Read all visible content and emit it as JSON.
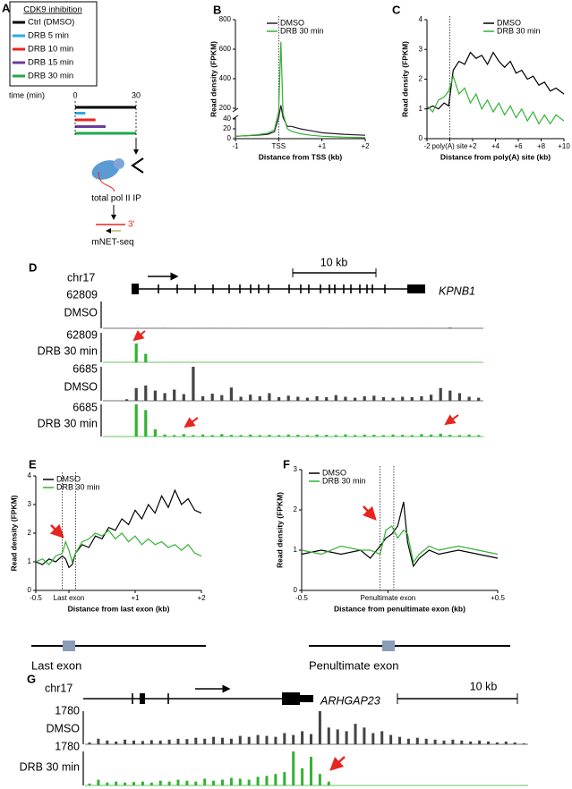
{
  "panel_labels": [
    "A",
    "B",
    "C",
    "D",
    "E",
    "F",
    "G"
  ],
  "panel_a": {
    "legend_title": "CDK9 inhibition",
    "items": [
      {
        "label": "Ctrl (DMSO)",
        "color": "#000000",
        "minutes": 30
      },
      {
        "label": "DRB 5 min",
        "color": "#29abe2",
        "minutes": 5
      },
      {
        "label": "DRB 10 min",
        "color": "#e8251f",
        "minutes": 10
      },
      {
        "label": "DRB 15 min",
        "color": "#6a3d9a",
        "minutes": 15
      },
      {
        "label": "DRB 30 min",
        "color": "#1fa84a",
        "minutes": 30
      }
    ],
    "time_label": "time (min)",
    "time_ticks": [
      0,
      30
    ],
    "ip_label": "total pol II IP",
    "end_label": "3'",
    "method_label": "mNET-seq"
  },
  "chart_data": [
    {
      "type": "line",
      "xlabel": "Distance from TSS (kb)",
      "ylabel": "Read density (FPKM)",
      "x": [
        -1,
        -0.75,
        -0.5,
        -0.25,
        -0.1,
        0,
        0.05,
        0.1,
        0.2,
        0.3,
        0.5,
        0.75,
        1,
        1.5,
        2
      ],
      "series": [
        {
          "name": "DMSO",
          "color": "#2a1a2e",
          "values": [
            5,
            6,
            7,
            9,
            14,
            60,
            220,
            60,
            25,
            25,
            20,
            16,
            12,
            9,
            7
          ]
        },
        {
          "name": "DRB 30 min",
          "color": "#33b233",
          "values": [
            5,
            6,
            8,
            11,
            18,
            150,
            650,
            120,
            20,
            15,
            10,
            7,
            5,
            3,
            2
          ]
        }
      ],
      "xlim": [
        -1,
        2
      ],
      "ylim": [
        0,
        800
      ],
      "y_break": [
        40,
        200
      ],
      "xticks": [
        -1,
        {
          "value": 0,
          "label": "TSS"
        },
        {
          "value": 1,
          "label": "+1"
        },
        {
          "value": 2,
          "label": "+2"
        }
      ],
      "yticks": [
        0,
        20,
        40,
        200,
        400,
        600,
        800
      ],
      "reference_lines": [
        0
      ],
      "legend": "top-right"
    },
    {
      "type": "line",
      "xlabel": "Distance from poly(A) site (kb)",
      "ylabel": "Read density (FPKM)",
      "x": [
        -2,
        -1.5,
        -1,
        -0.5,
        -0.1,
        0.3,
        0.8,
        1.3,
        1.8,
        2.3,
        2.8,
        3.3,
        3.8,
        4.3,
        4.8,
        5.3,
        5.8,
        6.3,
        6.8,
        7.3,
        7.8,
        8.3,
        8.8,
        9.3,
        10
      ],
      "series": [
        {
          "name": "DMSO",
          "color": "#000000",
          "values": [
            1.0,
            1.1,
            1.0,
            1.2,
            1.1,
            2.3,
            2.6,
            2.5,
            2.9,
            2.7,
            2.8,
            2.5,
            2.9,
            2.6,
            2.4,
            2.6,
            2.2,
            2.3,
            2.0,
            2.1,
            1.8,
            1.9,
            1.6,
            1.7,
            1.5
          ]
        },
        {
          "name": "DRB 30 min",
          "color": "#33b233",
          "values": [
            1.1,
            0.9,
            1.3,
            1.4,
            1.6,
            2.1,
            1.5,
            1.7,
            1.2,
            1.5,
            1.0,
            1.3,
            0.9,
            1.2,
            0.8,
            1.1,
            0.7,
            1.0,
            0.6,
            0.9,
            0.5,
            0.8,
            0.5,
            0.8,
            0.6
          ]
        }
      ],
      "xlim": [
        -2,
        10
      ],
      "ylim": [
        0,
        4
      ],
      "xticks": [
        -2,
        {
          "value": 0,
          "label": "poly(A) site"
        },
        {
          "value": 2,
          "label": "+2"
        },
        {
          "value": 4,
          "label": "+4"
        },
        {
          "value": 6,
          "label": "+6"
        },
        {
          "value": 8,
          "label": "+8"
        },
        {
          "value": 10,
          "label": "+10"
        }
      ],
      "yticks": [
        0,
        1,
        2,
        3,
        4
      ],
      "reference_lines": [
        0
      ],
      "legend": "top-right"
    },
    {
      "type": "line",
      "xlabel": "Distance from last exon (kb)",
      "ylabel": "Read density (FPKM)",
      "x": [
        -0.5,
        -0.4,
        -0.3,
        -0.2,
        -0.1,
        -0.05,
        0,
        0.05,
        0.1,
        0.2,
        0.3,
        0.4,
        0.5,
        0.6,
        0.7,
        0.8,
        0.9,
        1.0,
        1.1,
        1.2,
        1.3,
        1.4,
        1.5,
        1.6,
        1.7,
        1.8,
        1.9,
        2.0
      ],
      "series": [
        {
          "name": "DMSO",
          "color": "#000000",
          "values": [
            1.0,
            0.9,
            1.1,
            1.0,
            1.2,
            1.1,
            0.8,
            0.9,
            1.3,
            1.6,
            1.5,
            1.9,
            1.8,
            2.2,
            2.1,
            2.5,
            2.3,
            2.8,
            2.5,
            3.0,
            2.7,
            3.3,
            2.9,
            3.5,
            3.0,
            3.2,
            2.8,
            2.7
          ]
        },
        {
          "name": "DRB 30 min",
          "color": "#33b233",
          "values": [
            1.0,
            1.1,
            0.9,
            1.2,
            1.3,
            1.7,
            1.4,
            1.0,
            1.3,
            1.7,
            1.8,
            2.0,
            1.9,
            2.1,
            1.8,
            2.0,
            1.7,
            1.9,
            1.6,
            1.8,
            1.6,
            1.7,
            1.5,
            1.6,
            1.4,
            1.6,
            1.3,
            1.2
          ]
        }
      ],
      "xlim": [
        -0.5,
        2
      ],
      "ylim": [
        0,
        4
      ],
      "xticks": [
        -0.5,
        {
          "value": 0,
          "label": "Last exon"
        },
        {
          "value": 1,
          "label": "+1"
        },
        {
          "value": 2,
          "label": "+2"
        }
      ],
      "yticks": [
        0,
        1,
        2,
        3,
        4
      ],
      "reference_lines": [
        -0.1,
        0.1
      ],
      "legend": "top-left",
      "caption": "Last exon"
    },
    {
      "type": "line",
      "xlabel": "Distance from penultimate exon (kb)",
      "ylabel": "Read density (FPKM)",
      "x": [
        -0.5,
        -0.4,
        -0.3,
        -0.2,
        -0.15,
        -0.1,
        -0.07,
        -0.04,
        -0.01,
        0.02,
        0.04,
        0.07,
        0.1,
        0.15,
        0.2,
        0.3,
        0.4,
        0.5
      ],
      "series": [
        {
          "name": "DMSO",
          "color": "#000000",
          "values": [
            0.9,
            1.0,
            0.9,
            1.0,
            0.8,
            1.1,
            1.3,
            1.4,
            1.6,
            2.2,
            1.2,
            0.6,
            0.8,
            1.0,
            0.9,
            1.0,
            0.9,
            0.8
          ]
        },
        {
          "name": "DRB 30 min",
          "color": "#33b233",
          "values": [
            1.0,
            0.9,
            1.1,
            1.0,
            1.0,
            0.9,
            1.5,
            1.6,
            1.3,
            1.5,
            1.4,
            0.7,
            0.9,
            1.1,
            1.0,
            1.1,
            1.0,
            0.9
          ]
        }
      ],
      "xlim": [
        -0.5,
        0.5
      ],
      "ylim": [
        0,
        3
      ],
      "xticks": [
        -0.5,
        {
          "value": -0.06,
          "label": "Penultimate exon"
        },
        {
          "value": 0.5,
          "label": "+0.5"
        }
      ],
      "yticks": [
        0,
        1,
        2,
        3
      ],
      "reference_lines": [
        -0.1,
        -0.03
      ],
      "legend": "top-left",
      "caption": "Penultimate exon"
    }
  ],
  "panel_d": {
    "chrom": "chr17",
    "gene": "KPNB1",
    "scale_label": "10 kb",
    "tracks": [
      {
        "max": 62809,
        "name": "DMSO",
        "color": "#444444",
        "signal": [
          300,
          200,
          400,
          300,
          250,
          350,
          800,
          300,
          200,
          300,
          250,
          400,
          300,
          200,
          350,
          300,
          250,
          300,
          200,
          400,
          300,
          250,
          300,
          350,
          200,
          300,
          250,
          300,
          400,
          300,
          250,
          200,
          300,
          350,
          300,
          400,
          1500,
          300,
          250,
          200
        ]
      },
      {
        "max": 62809,
        "name": "DRB 30 min",
        "color": "#33b233",
        "signal": [
          0,
          0,
          0,
          40000,
          18000,
          100,
          150,
          200,
          100,
          150,
          100,
          200,
          100,
          150,
          100,
          200,
          150,
          100,
          150,
          100,
          200,
          150,
          100,
          150,
          200,
          100,
          150,
          100,
          200,
          150,
          100,
          150,
          100,
          200,
          150,
          100,
          150,
          200,
          100,
          150
        ]
      },
      {
        "max": 6685,
        "name": "DMSO",
        "color": "#444444",
        "signal": [
          0,
          0,
          300,
          2500,
          3000,
          2000,
          1500,
          2200,
          1300,
          6685,
          900,
          1400,
          1100,
          2600,
          800,
          1200,
          900,
          1500,
          700,
          1000,
          800,
          600,
          900,
          700,
          1100,
          800,
          600,
          900,
          1000,
          700,
          600,
          800,
          700,
          900,
          1200,
          2500,
          2000,
          1500,
          800,
          600
        ]
      },
      {
        "max": 6685,
        "name": "DRB 30 min",
        "color": "#33b233",
        "signal": [
          0,
          0,
          0,
          6685,
          5500,
          1500,
          400,
          300,
          500,
          300,
          400,
          300,
          500,
          350,
          300,
          400,
          300,
          350,
          300,
          400,
          350,
          300,
          400,
          350,
          300,
          450,
          300,
          400,
          350,
          300,
          400,
          350,
          300,
          500,
          400,
          600,
          350,
          300,
          400,
          300
        ]
      }
    ]
  },
  "panel_g": {
    "chrom": "chr17",
    "gene": "ARHGAP23",
    "scale_label": "10 kb",
    "tracks": [
      {
        "max": 1780,
        "name": "DMSO",
        "color": "#444444",
        "signal": [
          100,
          300,
          200,
          150,
          250,
          200,
          180,
          220,
          200,
          250,
          300,
          280,
          350,
          300,
          400,
          350,
          300,
          450,
          400,
          500,
          450,
          400,
          600,
          500,
          700,
          550,
          1780,
          900,
          800,
          700,
          1100,
          900,
          600,
          700,
          500,
          400,
          300,
          350,
          300,
          250,
          200,
          250,
          200,
          150,
          200,
          150,
          100,
          150,
          100,
          50
        ]
      },
      {
        "max": 1780,
        "name": "DRB 30 min",
        "color": "#33b233",
        "signal": [
          100,
          300,
          150,
          200,
          150,
          180,
          200,
          150,
          250,
          200,
          300,
          250,
          200,
          350,
          250,
          300,
          400,
          350,
          300,
          450,
          500,
          600,
          700,
          1780,
          900,
          1500,
          600,
          200,
          0,
          0,
          0,
          0,
          0,
          0,
          0,
          0,
          0,
          0,
          0,
          0,
          0,
          0,
          0,
          0,
          0,
          0,
          0,
          0,
          0,
          0
        ]
      }
    ]
  }
}
